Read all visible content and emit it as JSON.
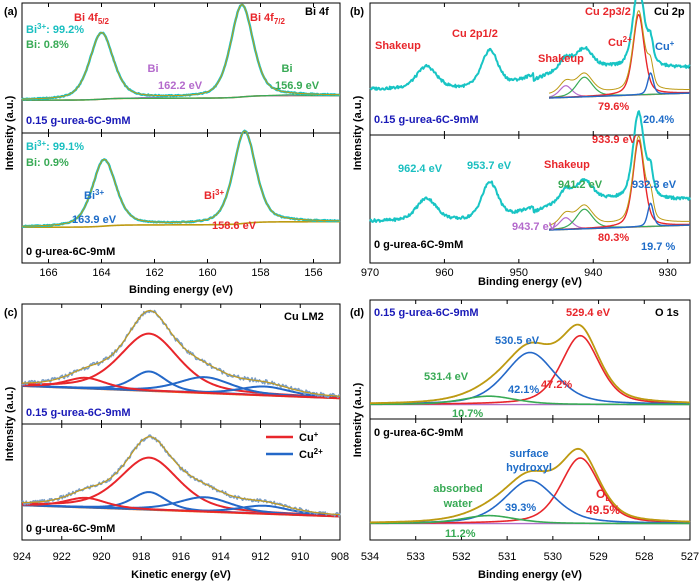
{
  "colors": {
    "data": "#18c4c4",
    "fit": "#bd9a12",
    "fit_c": "#c09a20",
    "red": "#e8262b",
    "blue": "#2468c8",
    "purple": "#b46acc",
    "green": "#38aa55",
    "cyan": "#1abfc0",
    "navy": "#1a1ab8",
    "orange": "#f07818",
    "label_blue": "#1e6cc8"
  },
  "chart_data": [
    {
      "panel": "(a)",
      "type": "line",
      "title": "Bi 4f",
      "xlabel": "Binding energy (eV)",
      "ylabel": "Intensity (a.u.)",
      "xlim": [
        167,
        155
      ],
      "xticks": [
        "166",
        "164",
        "162",
        "160",
        "158",
        "156"
      ],
      "xtick_values": [
        166,
        164,
        162,
        160,
        158,
        156
      ],
      "subpanels": [
        {
          "sample": "0.15 g-urea-6C-9mM",
          "peaks": [
            {
              "label": "Bi 4f",
              "sub": "5/2",
              "position": 164.0
            },
            {
              "label": "Bi 4f",
              "sub": "7/2",
              "position": 158.6
            }
          ],
          "components": [
            {
              "species": "Bi",
              "position": 162.2,
              "label": "162.2 eV"
            },
            {
              "species": "Bi",
              "position": 156.9,
              "label": "156.9 eV"
            }
          ],
          "ratios": [
            {
              "species": "Bi",
              "sup": "3+",
              "value": ": 99.2%"
            },
            {
              "species": "Bi",
              "value": ": 0.8%"
            }
          ]
        },
        {
          "sample": "0 g-urea-6C-9mM",
          "components": [
            {
              "species": "Bi",
              "sup": "3+",
              "position": 163.9,
              "label": "163.9 eV"
            },
            {
              "species": "Bi",
              "sup": "3+",
              "position": 158.6,
              "label": "158.6 eV"
            }
          ],
          "ratios": [
            {
              "species": "Bi",
              "sup": "3+",
              "value": ": 99.1%"
            },
            {
              "species": "Bi",
              "value": ": 0.9%"
            }
          ]
        }
      ]
    },
    {
      "panel": "(b)",
      "type": "line",
      "title": "Cu 2p",
      "xlabel": "Binding energy (eV)",
      "ylabel": "Intensity (a.u.)",
      "xlim": [
        970,
        927
      ],
      "xticks": [
        "970",
        "960",
        "950",
        "940",
        "930"
      ],
      "xtick_values": [
        970,
        960,
        950,
        940,
        930
      ],
      "subpanels": [
        {
          "sample": "0.15 g-urea-6C-9mM",
          "annotations": [
            "Shakeup",
            "Cu 2p1/2",
            "Shakeup",
            "Cu 2p3/2",
            "Cu",
            "Cu"
          ],
          "cu2_sup": "2+",
          "cu1_sup": "+",
          "ratios": {
            "cu2": "79.6%",
            "cu1": "20.4%"
          }
        },
        {
          "sample": "0 g-urea-6C-9mM",
          "annotations": [
            "962.4 eV",
            "953.7 eV",
            "Shakeup",
            "941.2 eV",
            "943.7 eV",
            "933.9 eV",
            "932.3 eV"
          ],
          "ratios": {
            "cu2": "80.3%",
            "cu1": "19.7 %"
          }
        }
      ]
    },
    {
      "panel": "(c)",
      "type": "line",
      "title": "Cu LM2",
      "xlabel": "Kinetic energy (eV)",
      "ylabel": "Intensity (a.u.)",
      "xlim": [
        924,
        908
      ],
      "xticks": [
        "924",
        "922",
        "920",
        "918",
        "916",
        "914",
        "912",
        "910",
        "908"
      ],
      "xtick_values": [
        924,
        922,
        920,
        918,
        916,
        914,
        912,
        910,
        908
      ],
      "legend": [
        {
          "name": "Cu",
          "sup": "+"
        },
        {
          "name": "Cu",
          "sup": "2+"
        }
      ],
      "subpanels": [
        {
          "sample": "0.15 g-urea-6C-9mM"
        },
        {
          "sample": "0 g-urea-6C-9mM"
        }
      ]
    },
    {
      "panel": "(d)",
      "type": "line",
      "title": "O 1s",
      "xlabel": "Binding energy (eV)",
      "ylabel": "Intensity (a.u.)",
      "xlim": [
        534,
        527
      ],
      "xticks": [
        "534",
        "533",
        "532",
        "531",
        "530",
        "529",
        "528",
        "527"
      ],
      "xtick_values": [
        534,
        533,
        532,
        531,
        530,
        529,
        528,
        527
      ],
      "subpanels": [
        {
          "sample": "0.15 g-urea-6C-9mM",
          "components": [
            {
              "position": 529.4,
              "label": "529.4 eV",
              "ratio": "47.2%"
            },
            {
              "position": 530.5,
              "label": "530.5 eV",
              "ratio": "42.1%"
            },
            {
              "position": 531.4,
              "label": "531.4 eV",
              "ratio": "10.7%"
            }
          ]
        },
        {
          "sample": "0 g-urea-6C-9mM",
          "labels": {
            "lattice": "O",
            "lattice_sub": "L",
            "hydroxyl1": "surface",
            "hydroxyl2": "hydroxyl",
            "water1": "absorbed",
            "water2": "water"
          },
          "ratios": {
            "lattice": "49.5%",
            "hydroxyl": "39.3%",
            "water": "11.2%"
          }
        }
      ]
    }
  ]
}
